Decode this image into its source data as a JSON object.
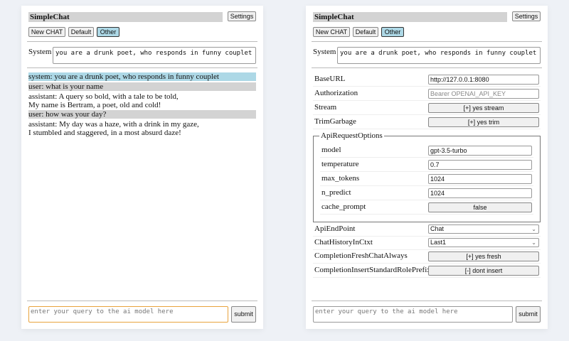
{
  "left": {
    "title": "SimpleChat",
    "settings": "Settings",
    "buttons": [
      "New CHAT",
      "Default",
      "Other"
    ],
    "system_label": "System",
    "system_value": "you are a drunk poet, who responds in funny couplet",
    "messages": [
      {
        "role": "system",
        "text": "system: you are a drunk poet, who responds in funny couplet"
      },
      {
        "role": "user",
        "text": "user: what is your name"
      },
      {
        "role": "assistant",
        "text": "assistant: A query so bold, with a tale to be told,",
        "text2": "My name is Bertram, a poet, old and cold!"
      },
      {
        "role": "user",
        "text": "user: how was your day?"
      },
      {
        "role": "assistant",
        "text": "assistant: My day was a haze, with a drink in my gaze,",
        "text2": "I stumbled and staggered, in a most absurd daze!"
      }
    ],
    "query_placeholder": "enter your query to the ai model here",
    "submit": "submit"
  },
  "right": {
    "title": "SimpleChat",
    "settings": "Settings",
    "buttons": [
      "New CHAT",
      "Default",
      "Other"
    ],
    "system_label": "System",
    "system_value": "you are a drunk poet, who responds in funny couplet",
    "settings_rows": {
      "baseurl": {
        "label": "BaseURL",
        "value": "http://127.0.0.1:8080"
      },
      "authorization": {
        "label": "Authorization",
        "placeholder": "Bearer OPENAI_API_KEY"
      },
      "stream": {
        "label": "Stream",
        "value": "[+] yes stream"
      },
      "trim": {
        "label": "TrimGarbage",
        "value": "[+] yes trim"
      },
      "api_options": {
        "legend": "ApiRequestOptions",
        "model": {
          "label": "model",
          "value": "gpt-3.5-turbo"
        },
        "temperature": {
          "label": "temperature",
          "value": "0.7"
        },
        "max_tokens": {
          "label": "max_tokens",
          "value": "1024"
        },
        "n_predict": {
          "label": "n_predict",
          "value": "1024"
        },
        "cache_prompt": {
          "label": "cache_prompt",
          "value": "false"
        }
      },
      "endpoint": {
        "label": "ApiEndPoint",
        "value": "Chat"
      },
      "history": {
        "label": "ChatHistoryInCtxt",
        "value": "Last1"
      },
      "fresh": {
        "label": "CompletionFreshChatAlways",
        "value": "[+] yes fresh"
      },
      "prefix": {
        "label": "CompletionInsertStandardRolePrefix",
        "value": "[-] dont insert"
      }
    },
    "query_placeholder": "enter your query to the ai model here",
    "submit": "submit"
  },
  "colors": {
    "selected_button": "#add8e6",
    "system_msg": "#add8e6",
    "user_msg": "#d3d3d3",
    "focus_border": "#e8a33d"
  }
}
